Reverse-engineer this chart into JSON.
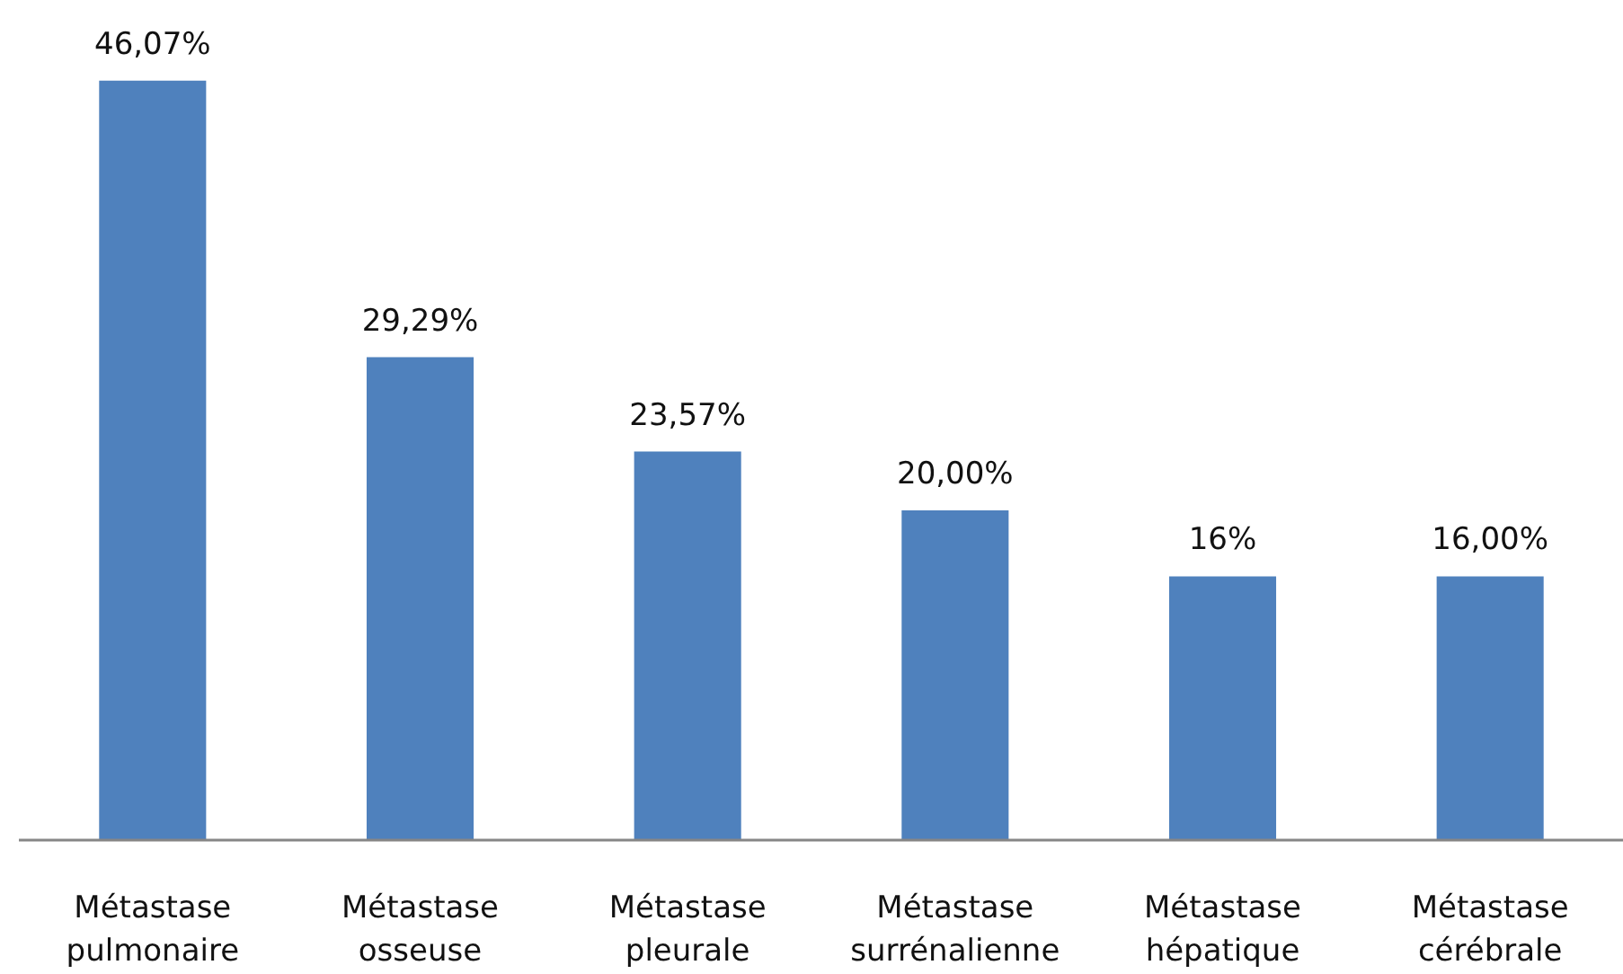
{
  "chart_data": {
    "type": "bar",
    "categories": [
      "Métastase pulmonaire",
      "Métastase osseuse",
      "Métastase pleurale",
      "Métastase surrénalienne",
      "Métastase hépatique",
      "Métastase cérébrale"
    ],
    "values": [
      46.07,
      29.29,
      23.57,
      20.0,
      16,
      16.0
    ],
    "value_labels": [
      "46,07%",
      "29,29%",
      "23,57%",
      "20,00%",
      "16%",
      "16,00%"
    ],
    "color": "#4f81bd"
  }
}
